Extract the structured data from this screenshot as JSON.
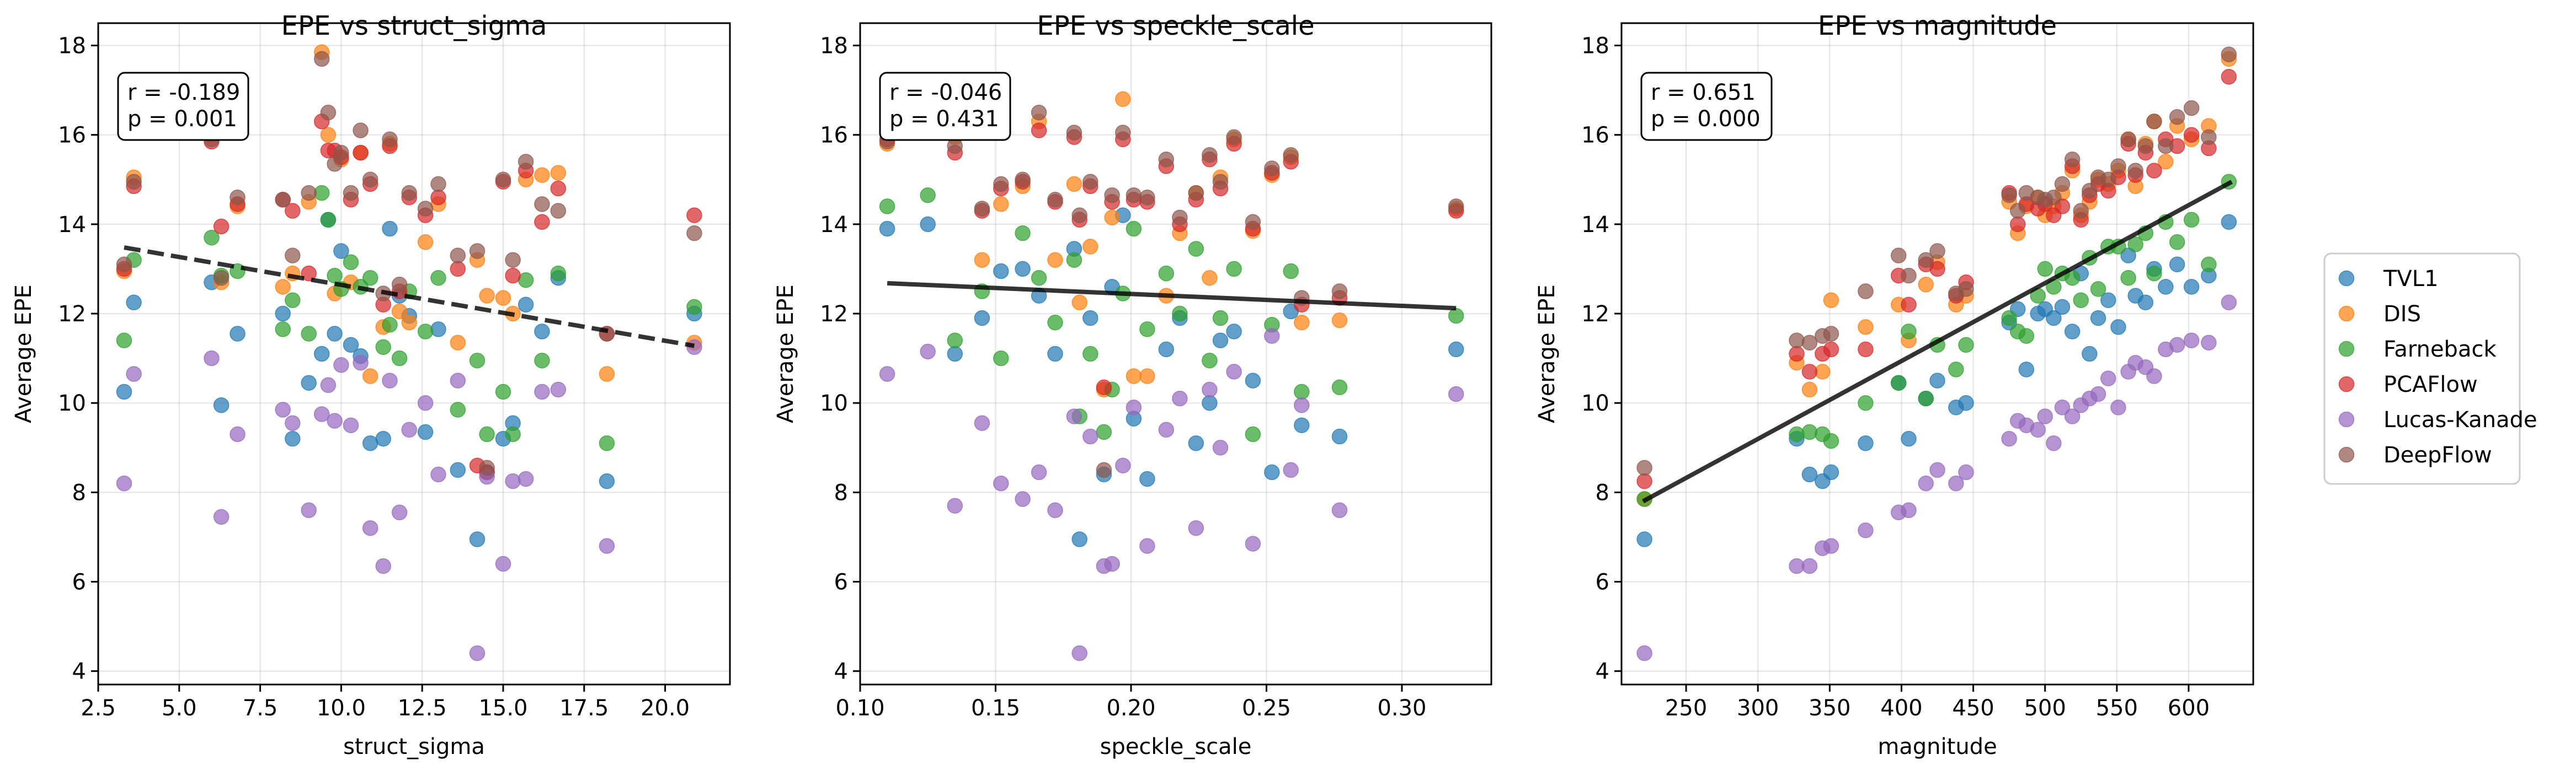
{
  "figure": {
    "series": [
      {
        "name": "TVL1",
        "color": "#1f77b4"
      },
      {
        "name": "DIS",
        "color": "#ff7f0e"
      },
      {
        "name": "Farneback",
        "color": "#2ca02c"
      },
      {
        "name": "PCAFlow",
        "color": "#d62728"
      },
      {
        "name": "Lucas-Kanade",
        "color": "#9467bd"
      },
      {
        "name": "DeepFlow",
        "color": "#8c564b"
      }
    ],
    "legend_position": "right-outside"
  },
  "chart_data": [
    {
      "type": "scatter",
      "title": "EPE vs struct_sigma",
      "xlabel": "struct_sigma",
      "ylabel": "Average EPE",
      "xlim": [
        2.5,
        22
      ],
      "ylim": [
        3.7,
        18.5
      ],
      "xticks": [
        2.5,
        5.0,
        7.5,
        10.0,
        12.5,
        15.0,
        17.5,
        20.0
      ],
      "xticklabels": [
        "2.5",
        "5.0",
        "7.5",
        "10.0",
        "12.5",
        "15.0",
        "17.5",
        "20.0"
      ],
      "yticks": [
        4,
        6,
        8,
        10,
        12,
        14,
        16,
        18
      ],
      "grid": true,
      "stats": {
        "r_text": "r = -0.189",
        "p_text": "p = 0.001"
      },
      "trend": {
        "x": [
          3.3,
          20.9
        ],
        "y": [
          13.48,
          11.28
        ],
        "style": "dashed"
      },
      "x": [
        3.3,
        3.6,
        6.0,
        6.3,
        6.8,
        8.2,
        8.5,
        9.0,
        9.4,
        9.6,
        9.8,
        10.0,
        10.3,
        10.6,
        10.9,
        11.3,
        11.5,
        11.8,
        12.1,
        12.6,
        13.0,
        13.6,
        14.2,
        14.5,
        15.0,
        15.3,
        15.7,
        16.2,
        16.7,
        18.2,
        20.9
      ],
      "series": [
        {
          "name": "TVL1",
          "values": [
            10.25,
            12.25,
            12.7,
            9.95,
            11.55,
            12.0,
            9.2,
            10.45,
            11.1,
            14.1,
            11.55,
            13.4,
            11.3,
            11.05,
            9.1,
            9.2,
            13.9,
            12.4,
            11.95,
            9.35,
            11.65,
            8.5,
            6.95,
            8.45,
            9.2,
            9.55,
            12.2,
            11.6,
            12.8,
            8.25,
            12.0
          ]
        },
        {
          "name": "DIS",
          "values": [
            12.95,
            15.05,
            16.0,
            12.7,
            14.4,
            12.6,
            12.9,
            14.5,
            17.85,
            16.0,
            12.45,
            15.45,
            12.7,
            15.6,
            10.6,
            11.7,
            15.8,
            12.05,
            11.8,
            13.6,
            14.45,
            11.35,
            13.2,
            12.4,
            12.35,
            12.0,
            15.0,
            15.1,
            15.15,
            10.65,
            11.35
          ]
        },
        {
          "name": "Farneback",
          "values": [
            11.4,
            13.2,
            13.7,
            12.85,
            12.95,
            11.65,
            12.3,
            11.55,
            14.7,
            14.1,
            12.85,
            12.55,
            13.15,
            12.6,
            12.8,
            11.25,
            11.75,
            11.0,
            12.5,
            11.6,
            12.8,
            9.85,
            10.95,
            9.3,
            10.25,
            9.3,
            12.75,
            10.95,
            12.9,
            9.1,
            12.15
          ]
        },
        {
          "name": "PCAFlow",
          "values": [
            13.0,
            14.85,
            15.85,
            13.95,
            14.45,
            14.55,
            14.3,
            12.9,
            16.3,
            15.65,
            15.65,
            15.5,
            14.55,
            15.6,
            14.9,
            12.2,
            15.75,
            12.5,
            14.6,
            14.2,
            14.6,
            13.0,
            8.6,
            8.45,
            14.95,
            12.85,
            15.2,
            14.05,
            14.8,
            11.55,
            14.2
          ]
        },
        {
          "name": "Lucas-Kanade",
          "values": [
            8.2,
            10.65,
            11.0,
            7.45,
            9.3,
            9.85,
            9.55,
            7.6,
            9.75,
            10.4,
            9.6,
            10.85,
            9.5,
            10.9,
            7.2,
            6.35,
            10.5,
            7.55,
            9.4,
            10.0,
            8.4,
            10.5,
            4.4,
            8.35,
            6.4,
            8.25,
            8.3,
            10.25,
            10.3,
            6.8,
            11.25
          ]
        },
        {
          "name": "DeepFlow",
          "values": [
            13.1,
            14.95,
            15.9,
            12.8,
            14.6,
            14.55,
            13.3,
            14.7,
            17.7,
            16.5,
            15.35,
            15.6,
            14.7,
            16.1,
            15.0,
            12.45,
            15.9,
            12.65,
            14.7,
            14.35,
            14.9,
            13.3,
            13.4,
            8.55,
            15.0,
            13.2,
            15.4,
            14.45,
            14.3,
            11.55,
            13.8
          ]
        }
      ]
    },
    {
      "type": "scatter",
      "title": "EPE vs speckle_scale",
      "xlabel": "speckle_scale",
      "ylabel": "Average EPE",
      "xlim": [
        0.1,
        0.333
      ],
      "ylim": [
        3.7,
        18.5
      ],
      "xticks": [
        0.1,
        0.15,
        0.2,
        0.25,
        0.3
      ],
      "xticklabels": [
        "0.10",
        "0.15",
        "0.20",
        "0.25",
        "0.30"
      ],
      "yticks": [
        4,
        6,
        8,
        10,
        12,
        14,
        16,
        18
      ],
      "grid": true,
      "stats": {
        "r_text": "r = -0.046",
        "p_text": "p = 0.431"
      },
      "trend": {
        "x": [
          0.11,
          0.32
        ],
        "y": [
          12.68,
          12.12
        ],
        "style": "solid"
      },
      "x": [
        0.11,
        0.125,
        0.135,
        0.145,
        0.152,
        0.16,
        0.166,
        0.172,
        0.179,
        0.181,
        0.185,
        0.19,
        0.193,
        0.197,
        0.201,
        0.206,
        0.213,
        0.218,
        0.224,
        0.229,
        0.233,
        0.238,
        0.245,
        0.252,
        0.259,
        0.263,
        0.277,
        0.32
      ],
      "series": [
        {
          "name": "TVL1",
          "values": [
            13.9,
            14.0,
            11.1,
            11.9,
            12.95,
            13.0,
            12.4,
            11.1,
            13.45,
            6.95,
            11.9,
            8.4,
            12.6,
            14.2,
            9.65,
            8.3,
            11.2,
            11.9,
            9.1,
            10.0,
            11.4,
            11.6,
            10.5,
            8.45,
            12.05,
            9.5,
            9.25,
            11.2
          ]
        },
        {
          "name": "DIS",
          "values": [
            15.8,
            16.2,
            15.95,
            13.2,
            14.45,
            14.85,
            16.3,
            13.2,
            14.9,
            12.25,
            13.5,
            10.3,
            14.15,
            16.8,
            10.6,
            10.6,
            12.4,
            13.8,
            14.7,
            12.8,
            15.05,
            15.9,
            13.85,
            15.1,
            15.5,
            11.8,
            11.85,
            14.35
          ]
        },
        {
          "name": "Farneback",
          "values": [
            14.4,
            14.65,
            11.4,
            12.5,
            11.0,
            13.8,
            12.8,
            11.8,
            13.2,
            9.7,
            11.1,
            9.35,
            10.3,
            12.45,
            13.9,
            11.65,
            12.9,
            12.0,
            13.45,
            10.95,
            11.9,
            13.0,
            9.3,
            11.75,
            12.95,
            10.25,
            10.35,
            11.95
          ]
        },
        {
          "name": "PCAFlow",
          "values": [
            15.9,
            16.2,
            15.6,
            14.3,
            14.8,
            14.95,
            16.1,
            14.5,
            15.95,
            14.1,
            14.85,
            10.35,
            14.5,
            15.9,
            14.55,
            14.5,
            15.3,
            14.0,
            14.55,
            15.45,
            14.8,
            15.8,
            13.9,
            15.15,
            15.4,
            12.2,
            12.35,
            14.3
          ]
        },
        {
          "name": "Lucas-Kanade",
          "values": [
            10.65,
            11.15,
            7.7,
            9.55,
            8.2,
            7.85,
            8.45,
            7.6,
            9.7,
            4.4,
            9.25,
            6.35,
            6.4,
            8.6,
            9.9,
            6.8,
            9.4,
            10.1,
            7.2,
            10.3,
            9.0,
            10.7,
            6.85,
            11.5,
            8.5,
            9.95,
            7.6,
            10.2
          ]
        },
        {
          "name": "DeepFlow",
          "values": [
            15.85,
            16.25,
            15.75,
            14.35,
            14.9,
            15.0,
            16.5,
            14.55,
            16.05,
            14.2,
            14.95,
            8.5,
            14.65,
            16.05,
            14.65,
            14.6,
            15.45,
            14.15,
            14.7,
            15.55,
            14.95,
            15.95,
            14.05,
            15.25,
            15.55,
            12.35,
            12.5,
            14.4
          ]
        }
      ]
    },
    {
      "type": "scatter",
      "title": "EPE vs magnitude",
      "xlabel": "magnitude",
      "ylabel": "Average EPE",
      "xlim": [
        205,
        645
      ],
      "ylim": [
        3.7,
        18.5
      ],
      "xticks": [
        250,
        300,
        350,
        400,
        450,
        500,
        550,
        600
      ],
      "xticklabels": [
        "250",
        "300",
        "350",
        "400",
        "450",
        "500",
        "550",
        "600"
      ],
      "yticks": [
        4,
        6,
        8,
        10,
        12,
        14,
        16,
        18
      ],
      "grid": true,
      "stats": {
        "r_text": "r = 0.651",
        "p_text": "p = 0.000"
      },
      "trend": {
        "x": [
          220,
          630
        ],
        "y": [
          7.8,
          14.95
        ],
        "style": "solid"
      },
      "x": [
        221,
        327,
        336,
        345,
        351,
        375,
        398,
        405,
        417,
        425,
        438,
        445,
        475,
        481,
        487,
        495,
        500,
        506,
        512,
        519,
        525,
        531,
        537,
        544,
        551,
        558,
        563,
        570,
        576,
        584,
        592,
        602,
        614,
        628
      ],
      "series": [
        {
          "name": "TVL1",
          "values": [
            6.95,
            9.2,
            8.4,
            8.25,
            8.45,
            9.1,
            10.45,
            9.2,
            10.1,
            10.5,
            9.9,
            10.0,
            11.8,
            12.1,
            10.75,
            12.0,
            12.1,
            11.9,
            12.15,
            11.6,
            12.9,
            11.1,
            11.9,
            12.3,
            11.7,
            13.3,
            12.4,
            12.25,
            13.0,
            12.6,
            13.1,
            12.6,
            12.85,
            14.05
          ]
        },
        {
          "name": "DIS",
          "values": [
            7.85,
            10.9,
            10.3,
            10.7,
            12.3,
            11.7,
            12.2,
            11.4,
            12.65,
            13.15,
            12.2,
            12.4,
            14.5,
            13.8,
            14.4,
            14.6,
            14.2,
            14.4,
            14.7,
            15.2,
            14.2,
            14.5,
            15.0,
            14.9,
            15.2,
            15.9,
            14.85,
            15.8,
            16.3,
            15.4,
            16.2,
            15.9,
            16.2,
            17.7
          ]
        },
        {
          "name": "Farneback",
          "values": [
            7.85,
            9.3,
            9.35,
            9.3,
            9.15,
            10.0,
            10.45,
            11.6,
            10.1,
            11.3,
            10.75,
            11.3,
            11.9,
            11.6,
            11.5,
            12.4,
            13.0,
            12.6,
            12.9,
            12.8,
            12.3,
            13.25,
            12.55,
            13.5,
            13.5,
            12.8,
            13.55,
            13.8,
            12.9,
            14.05,
            13.6,
            14.1,
            13.1,
            14.95
          ]
        },
        {
          "name": "PCAFlow",
          "values": [
            8.25,
            11.1,
            10.7,
            11.1,
            11.2,
            11.2,
            12.85,
            12.2,
            13.1,
            13.0,
            12.4,
            12.7,
            14.7,
            14.0,
            14.45,
            14.35,
            14.45,
            14.2,
            14.4,
            15.3,
            14.1,
            14.65,
            14.9,
            14.75,
            15.05,
            15.8,
            15.1,
            15.6,
            15.2,
            15.9,
            15.75,
            16.0,
            15.7,
            17.3
          ]
        },
        {
          "name": "Lucas-Kanade",
          "values": [
            4.4,
            6.35,
            6.35,
            6.75,
            6.8,
            7.15,
            7.55,
            7.6,
            8.2,
            8.5,
            8.2,
            8.45,
            9.2,
            9.6,
            9.5,
            9.4,
            9.7,
            9.1,
            9.9,
            9.7,
            9.95,
            10.1,
            10.2,
            10.55,
            9.9,
            10.7,
            10.9,
            10.8,
            10.6,
            11.2,
            11.3,
            11.4,
            11.35,
            12.25
          ]
        },
        {
          "name": "DeepFlow",
          "values": [
            8.55,
            11.4,
            11.35,
            11.5,
            11.55,
            12.5,
            13.3,
            12.85,
            13.2,
            13.4,
            12.45,
            12.55,
            14.65,
            14.3,
            14.7,
            14.6,
            14.55,
            14.6,
            14.9,
            15.45,
            14.3,
            14.75,
            15.05,
            15.0,
            15.3,
            15.9,
            15.2,
            15.75,
            16.3,
            15.75,
            16.4,
            16.6,
            15.95,
            17.8
          ]
        }
      ]
    }
  ]
}
